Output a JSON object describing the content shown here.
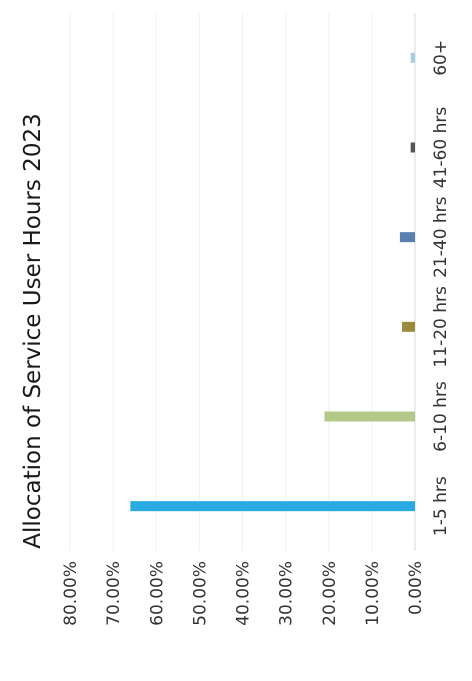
{
  "chart_data": {
    "type": "bar",
    "title": "Allocation of Service User  Hours 2023",
    "categories": [
      "1-5 hrs",
      "6-10 hrs",
      "11-20 hrs",
      "21-40 hrs",
      "41-60 hrs",
      "60+"
    ],
    "values": [
      0.66,
      0.21,
      0.03,
      0.035,
      0.01,
      0.01
    ],
    "colors": [
      "#29abe2",
      "#b3c98a",
      "#9a8a3c",
      "#5a7fb0",
      "#555555",
      "#a8cce4"
    ],
    "y_tick_labels": [
      "0.00%",
      "10.00%",
      "20.00%",
      "30.00%",
      "40.00%",
      "50.00%",
      "60.00%",
      "70.00%",
      "80.00%"
    ],
    "ylim": [
      0,
      0.8
    ],
    "grid": true,
    "orientation": "image rotated 90 degrees counter-clockwise"
  }
}
